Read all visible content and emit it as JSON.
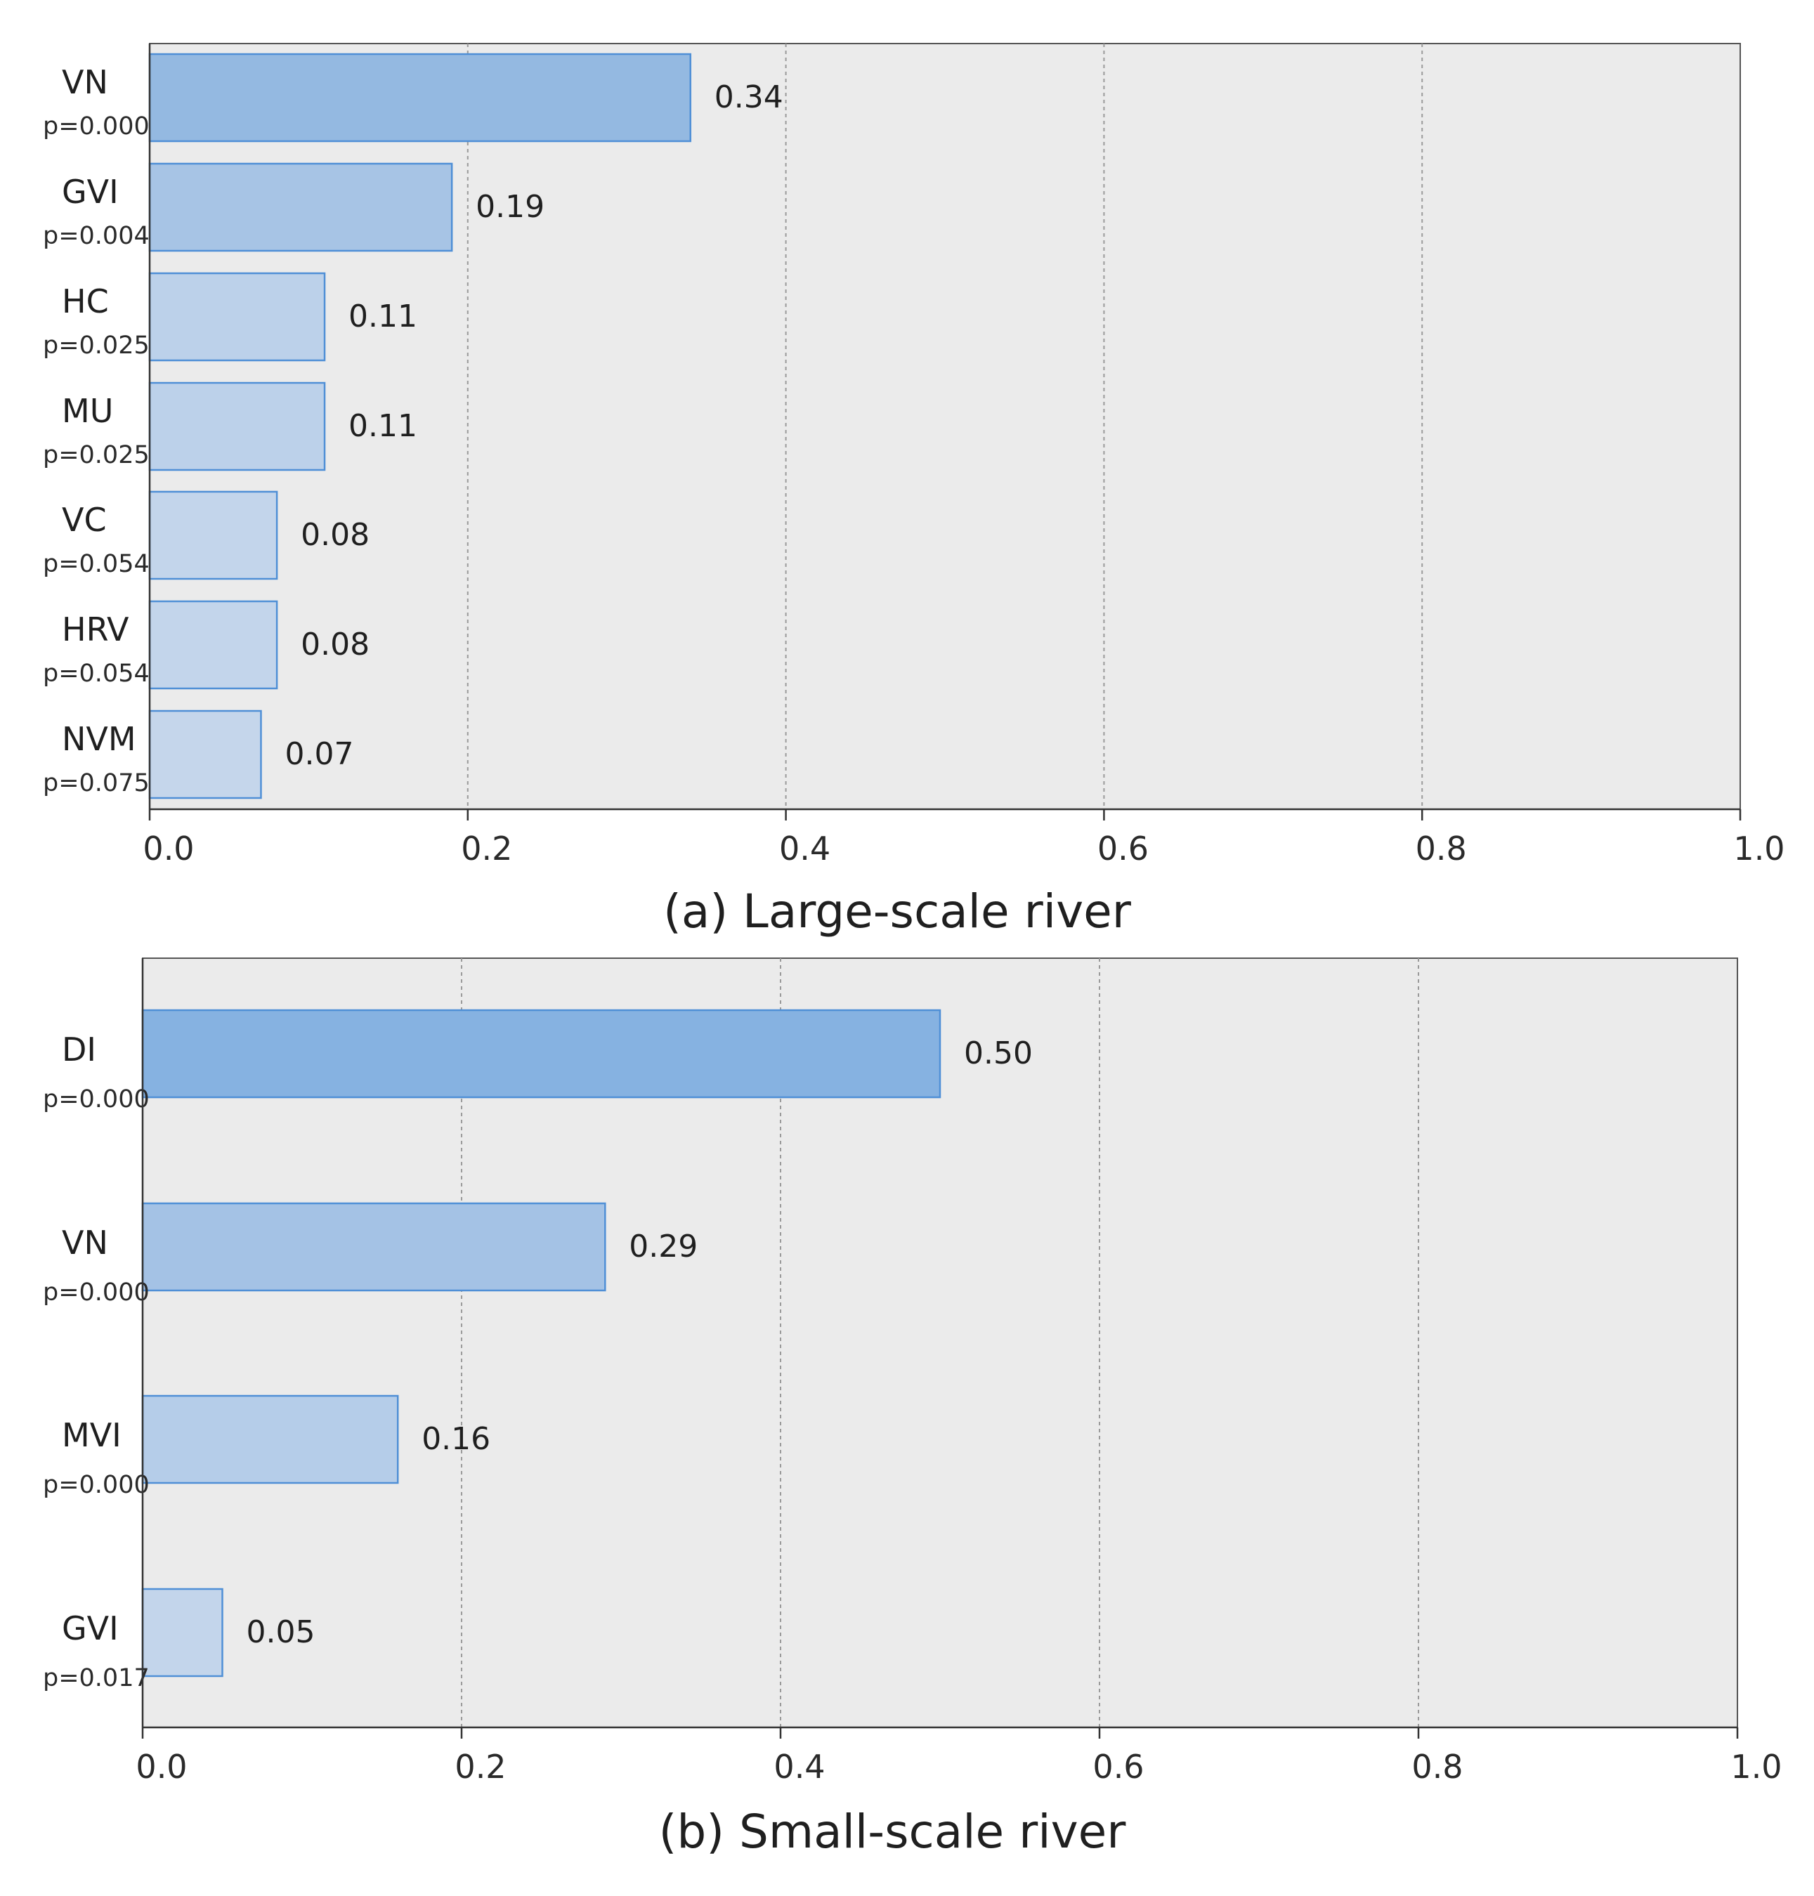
{
  "chart_data": [
    {
      "type": "bar",
      "orientation": "horizontal",
      "title": "(a)  Large-scale river",
      "xlim": [
        0,
        1.0
      ],
      "xticks": [
        "0.0",
        "0.2",
        "0.4",
        "0.6",
        "0.8",
        "1.0"
      ],
      "grid": true,
      "categories": [
        "VN",
        "GVI",
        "HC",
        "MU",
        "VC",
        "HRV",
        "NVM"
      ],
      "p_values": [
        "p=0.000",
        "p=0.004",
        "p=0.025",
        "p=0.025",
        "p=0.054",
        "p=0.054",
        "p=0.075"
      ],
      "values": [
        0.34,
        0.19,
        0.11,
        0.11,
        0.08,
        0.08,
        0.07
      ],
      "value_labels": [
        "0.34",
        "0.19",
        "0.11",
        "0.11",
        "0.08",
        "0.08",
        "0.07"
      ],
      "bar_colors": [
        "#94b9e1",
        "#a7c4e5",
        "#bcd1ea",
        "#bcd1ea",
        "#c3d5eb",
        "#c3d5eb",
        "#c5d6eb"
      ]
    },
    {
      "type": "bar",
      "orientation": "horizontal",
      "title": "(b)  Small-scale river",
      "xlim": [
        0,
        1.0
      ],
      "xticks": [
        "0.0",
        "0.2",
        "0.4",
        "0.6",
        "0.8",
        "1.0"
      ],
      "grid": true,
      "categories": [
        "DI",
        "VN",
        "MVI",
        "GVI"
      ],
      "p_values": [
        "p=0.000",
        "p=0.000",
        "p=0.000",
        "p=0.017"
      ],
      "values": [
        0.5,
        0.29,
        0.16,
        0.05
      ],
      "value_labels": [
        "0.50",
        "0.29",
        "0.16",
        "0.05"
      ],
      "bar_colors": [
        "#86b2e1",
        "#a4c2e5",
        "#b5cde9",
        "#c3d5eb"
      ]
    }
  ]
}
